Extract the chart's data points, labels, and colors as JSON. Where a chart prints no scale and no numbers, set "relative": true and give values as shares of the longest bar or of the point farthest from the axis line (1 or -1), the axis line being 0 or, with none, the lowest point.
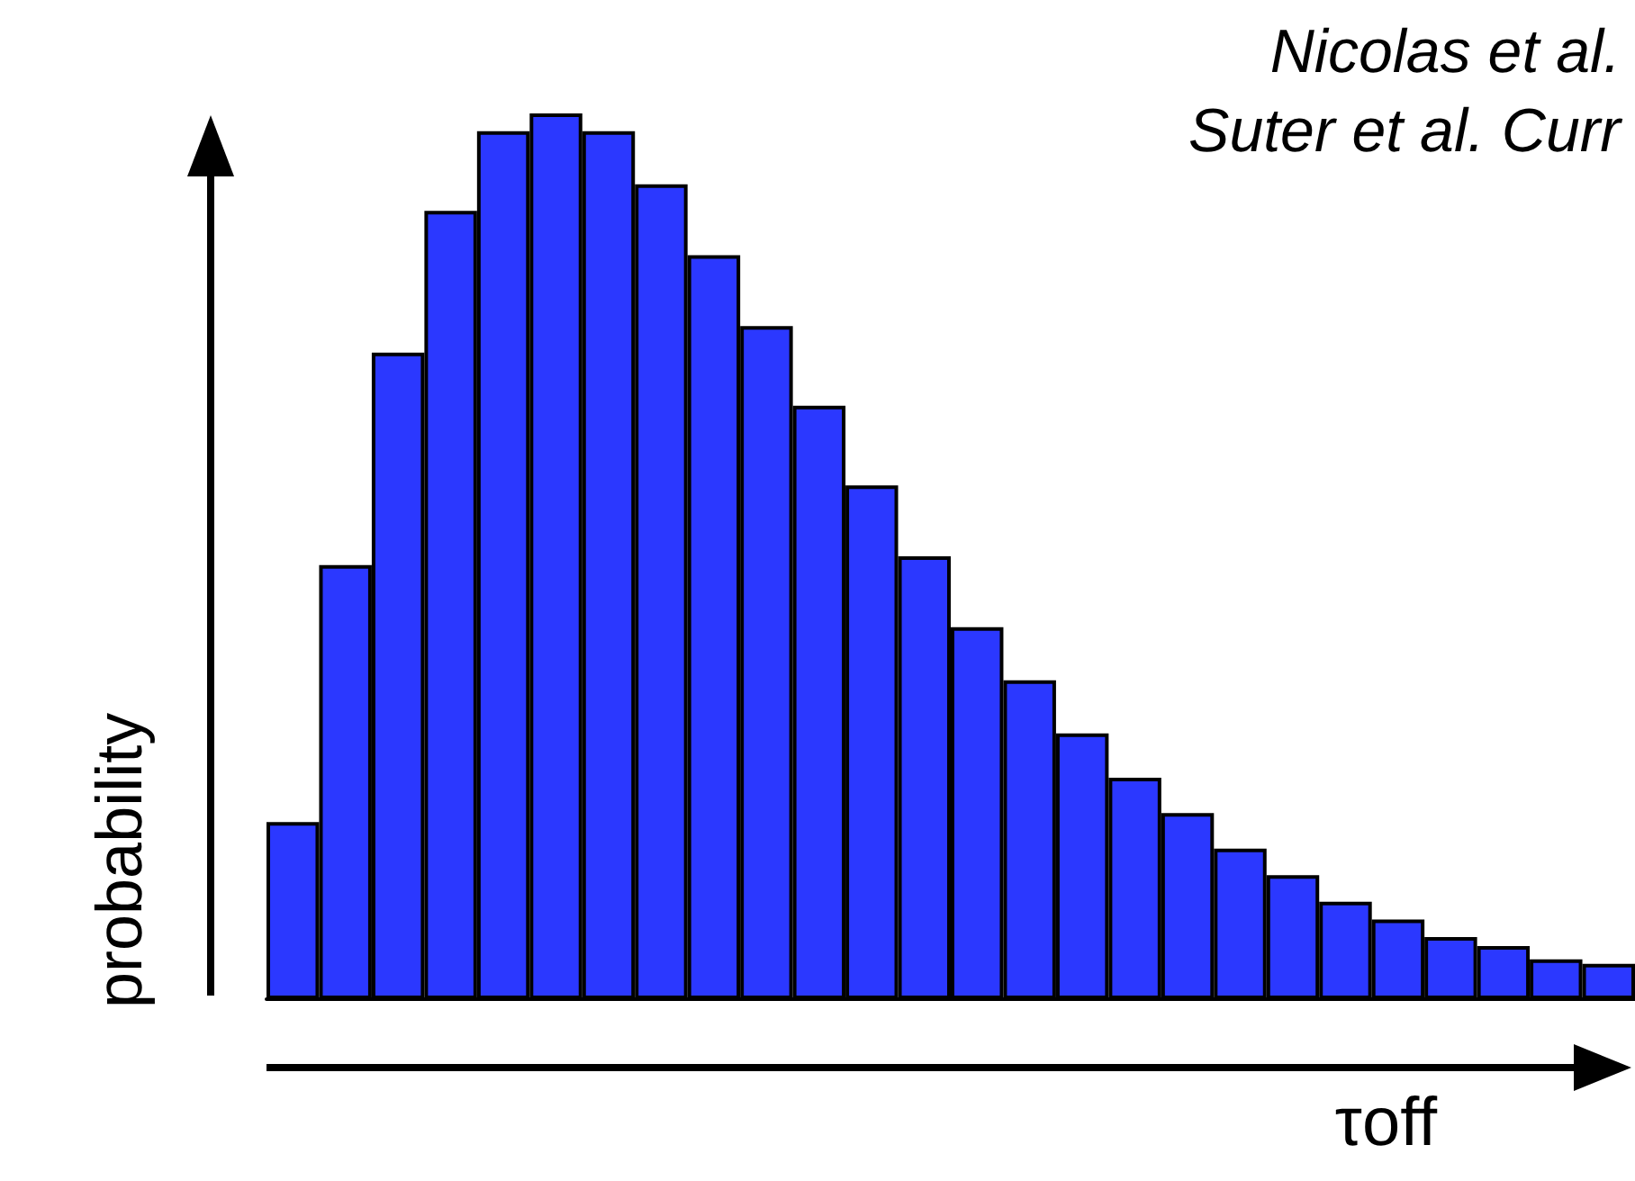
{
  "chart_data": {
    "type": "bar",
    "relative": true,
    "xlabel": "τoff",
    "ylabel": "probability",
    "annotations": [
      "Nicolas et al.",
      "Suter et al. Curr"
    ],
    "categories": [
      null,
      null,
      null,
      null,
      null,
      null,
      null,
      null,
      null,
      null,
      null,
      null,
      null,
      null,
      null,
      null,
      null,
      null,
      null,
      null,
      null,
      null,
      null,
      null,
      null,
      null
    ],
    "color": "#2b38ff",
    "values": [
      0.2,
      0.49,
      0.73,
      0.89,
      0.98,
      1,
      0.98,
      0.92,
      0.84,
      0.76,
      0.67,
      0.58,
      0.5,
      0.42,
      0.36,
      0.3,
      0.25,
      0.21,
      0.17,
      0.14,
      0.11,
      0.09,
      0.07,
      0.06,
      0.045,
      0.04
    ]
  }
}
